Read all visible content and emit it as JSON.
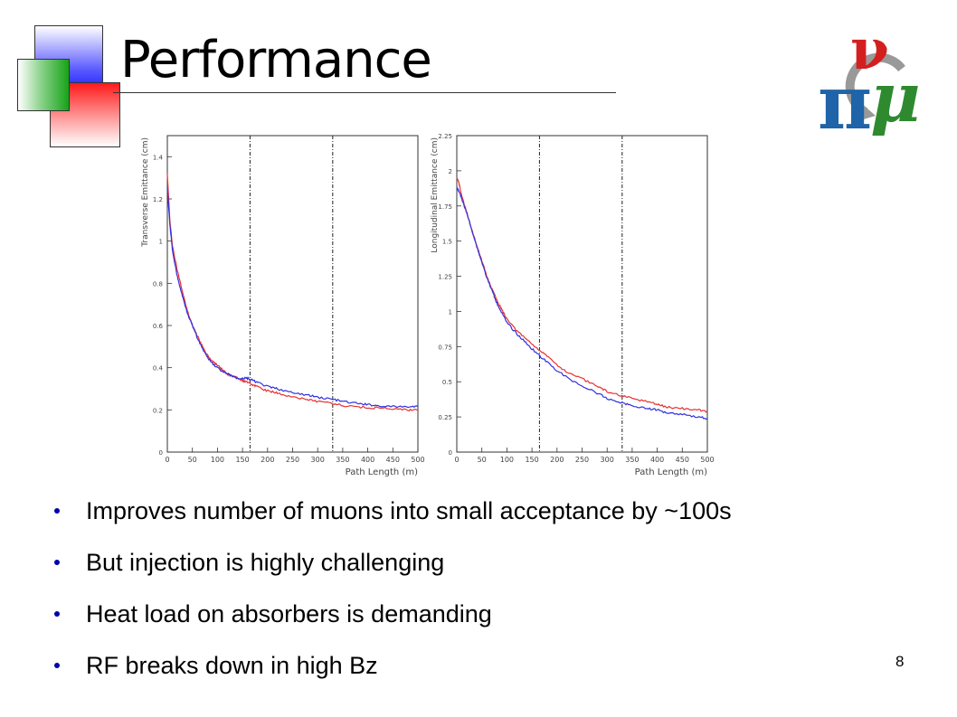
{
  "slide": {
    "title": "Performance",
    "page_number": "8",
    "bullets": [
      "Improves number of muons into small acceptance by ~100s",
      "But injection is highly challenging",
      "Heat load on absorbers is demanding",
      "RF breaks down in high Bz"
    ]
  },
  "logo": {
    "glyphs": [
      "ν",
      "π",
      "μ"
    ],
    "colors": {
      "nu": "#d41f1f",
      "pi": "#1f64a8",
      "mu": "#2f8a2f",
      "arrow": "#999999"
    }
  },
  "colors": {
    "red_series": "#e83030",
    "blue_series": "#3030e0",
    "bullet": "#0000aa"
  },
  "chart_data": [
    {
      "type": "line",
      "xlabel": "Path Length (m)",
      "ylabel": "Transverse Emittance (cm)",
      "xlim": [
        0,
        500
      ],
      "ylim": [
        0,
        1.5
      ],
      "xticks": [
        "0",
        "50",
        "100",
        "150",
        "200",
        "250",
        "300",
        "350",
        "400",
        "450",
        "500"
      ],
      "yticks": [
        "0",
        "0.2",
        "0.4",
        "0.6",
        "0.8",
        "1",
        "1.2",
        "1.4"
      ],
      "vlines": [
        165,
        330
      ],
      "grid": false,
      "series": [
        {
          "color": "#e83030",
          "x": [
            0,
            5,
            10,
            20,
            30,
            40,
            50,
            60,
            70,
            80,
            90,
            100,
            110,
            120,
            130,
            140,
            150,
            160,
            170,
            180,
            200,
            220,
            250,
            280,
            300,
            330,
            350,
            380,
            400,
            420,
            450,
            480,
            500
          ],
          "values": [
            1.32,
            1.1,
            0.98,
            0.86,
            0.76,
            0.67,
            0.6,
            0.55,
            0.5,
            0.46,
            0.43,
            0.41,
            0.39,
            0.37,
            0.36,
            0.35,
            0.34,
            0.33,
            0.32,
            0.31,
            0.29,
            0.28,
            0.26,
            0.25,
            0.24,
            0.23,
            0.22,
            0.215,
            0.21,
            0.21,
            0.205,
            0.2,
            0.2
          ]
        },
        {
          "color": "#3030e0",
          "x": [
            0,
            5,
            10,
            20,
            30,
            40,
            50,
            60,
            70,
            80,
            90,
            100,
            110,
            120,
            130,
            140,
            150,
            160,
            170,
            180,
            200,
            220,
            250,
            280,
            300,
            330,
            350,
            380,
            400,
            420,
            450,
            480,
            500
          ],
          "values": [
            1.25,
            1.08,
            0.96,
            0.83,
            0.74,
            0.66,
            0.6,
            0.54,
            0.49,
            0.45,
            0.42,
            0.4,
            0.38,
            0.37,
            0.36,
            0.35,
            0.35,
            0.35,
            0.34,
            0.33,
            0.31,
            0.3,
            0.28,
            0.27,
            0.26,
            0.25,
            0.24,
            0.23,
            0.225,
            0.22,
            0.215,
            0.215,
            0.215
          ]
        }
      ]
    },
    {
      "type": "line",
      "xlabel": "Path Length (m)",
      "ylabel": "Longitudinal Emittance (cm)",
      "xlim": [
        0,
        500
      ],
      "ylim": [
        0,
        2.25
      ],
      "xticks": [
        "0",
        "50",
        "100",
        "150",
        "200",
        "250",
        "300",
        "350",
        "400",
        "450",
        "500"
      ],
      "yticks": [
        "0",
        "0.25",
        "0.5",
        "0.75",
        "1",
        "1.25",
        "1.5",
        "1.75",
        "2",
        "2.25"
      ],
      "vlines": [
        165,
        330
      ],
      "grid": false,
      "series": [
        {
          "color": "#e83030",
          "x": [
            0,
            5,
            10,
            20,
            30,
            40,
            50,
            60,
            70,
            80,
            90,
            100,
            120,
            140,
            160,
            180,
            200,
            220,
            250,
            280,
            300,
            330,
            350,
            380,
            400,
            420,
            450,
            480,
            500
          ],
          "values": [
            1.96,
            1.9,
            1.82,
            1.7,
            1.58,
            1.47,
            1.36,
            1.25,
            1.16,
            1.08,
            1.01,
            0.95,
            0.86,
            0.8,
            0.74,
            0.68,
            0.62,
            0.57,
            0.52,
            0.47,
            0.43,
            0.4,
            0.38,
            0.36,
            0.34,
            0.32,
            0.31,
            0.3,
            0.29
          ]
        },
        {
          "color": "#3030e0",
          "x": [
            0,
            5,
            10,
            20,
            30,
            40,
            50,
            60,
            70,
            80,
            90,
            100,
            120,
            140,
            160,
            180,
            200,
            220,
            250,
            280,
            300,
            330,
            350,
            380,
            400,
            420,
            450,
            480,
            500
          ],
          "values": [
            1.88,
            1.85,
            1.8,
            1.7,
            1.58,
            1.46,
            1.35,
            1.24,
            1.15,
            1.06,
            0.99,
            0.92,
            0.84,
            0.77,
            0.7,
            0.64,
            0.58,
            0.53,
            0.47,
            0.42,
            0.38,
            0.35,
            0.33,
            0.31,
            0.3,
            0.28,
            0.27,
            0.25,
            0.24
          ]
        }
      ]
    }
  ]
}
